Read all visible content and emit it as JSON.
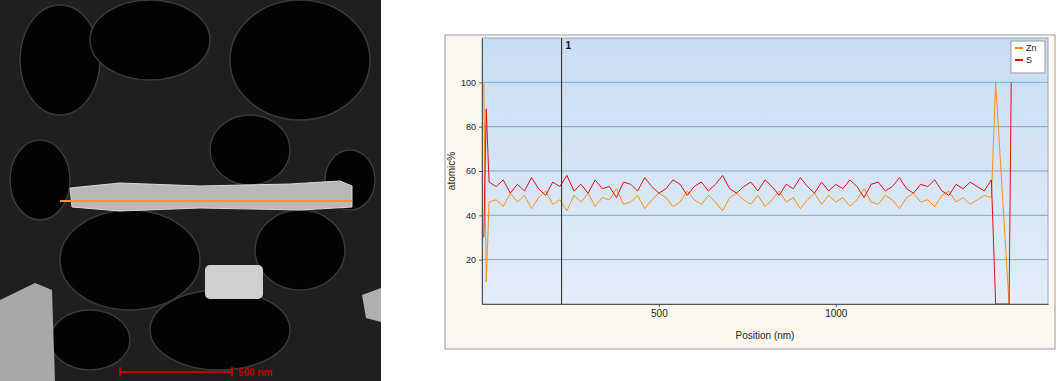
{
  "chart_data": {
    "type": "line",
    "x": [
      5,
      12,
      20,
      40,
      60,
      80,
      100,
      120,
      140,
      160,
      180,
      200,
      220,
      240,
      260,
      280,
      300,
      320,
      340,
      360,
      380,
      400,
      420,
      440,
      460,
      480,
      500,
      520,
      540,
      560,
      580,
      600,
      620,
      640,
      660,
      680,
      700,
      720,
      740,
      760,
      780,
      800,
      820,
      840,
      860,
      880,
      900,
      920,
      940,
      960,
      980,
      1000,
      1020,
      1040,
      1060,
      1080,
      1100,
      1120,
      1140,
      1160,
      1180,
      1200,
      1220,
      1240,
      1260,
      1280,
      1300,
      1320,
      1340,
      1360,
      1380,
      1400,
      1420,
      1440,
      1452,
      1490,
      1496
    ],
    "series": [
      {
        "name": "Zn",
        "color": "#ff8c1a",
        "values": [
          100,
          10,
          46,
          47,
          44,
          50,
          46,
          49,
          43,
          48,
          51,
          45,
          47,
          42,
          49,
          46,
          50,
          44,
          48,
          47,
          52,
          45,
          46,
          49,
          43,
          47,
          50,
          48,
          44,
          46,
          51,
          47,
          45,
          49,
          46,
          42,
          48,
          50,
          47,
          45,
          49,
          44,
          47,
          51,
          46,
          48,
          43,
          47,
          50,
          45,
          49,
          46,
          48,
          44,
          47,
          52,
          46,
          45,
          49,
          47,
          43,
          48,
          50,
          46,
          47,
          44,
          49,
          51,
          46,
          48,
          45,
          47,
          49,
          48,
          100,
          0,
          null
        ]
      },
      {
        "name": "S",
        "color": "#e01010",
        "values": [
          30,
          88,
          55,
          53,
          56,
          50,
          54,
          51,
          57,
          52,
          49,
          55,
          53,
          58,
          51,
          54,
          50,
          56,
          52,
          53,
          48,
          55,
          54,
          51,
          57,
          53,
          50,
          52,
          56,
          54,
          49,
          53,
          55,
          51,
          54,
          58,
          52,
          50,
          53,
          55,
          51,
          56,
          53,
          49,
          54,
          52,
          57,
          53,
          50,
          55,
          51,
          54,
          52,
          56,
          53,
          48,
          54,
          55,
          51,
          53,
          57,
          52,
          50,
          54,
          53,
          56,
          51,
          49,
          54,
          52,
          55,
          53,
          51,
          56,
          0,
          0,
          100
        ]
      }
    ],
    "xlim": [
      0,
      1600
    ],
    "xticks": [
      500,
      1000
    ],
    "ylim": [
      0,
      120
    ],
    "yticks": [
      20,
      40,
      60,
      80,
      100
    ],
    "x_label": "Position (nm)",
    "y_label": "atomic%",
    "grid": true,
    "legend": "top-right",
    "annotations": [
      {
        "x": 225,
        "text": "1"
      }
    ]
  },
  "micrograph": {
    "scale_bar": "500 nm"
  }
}
